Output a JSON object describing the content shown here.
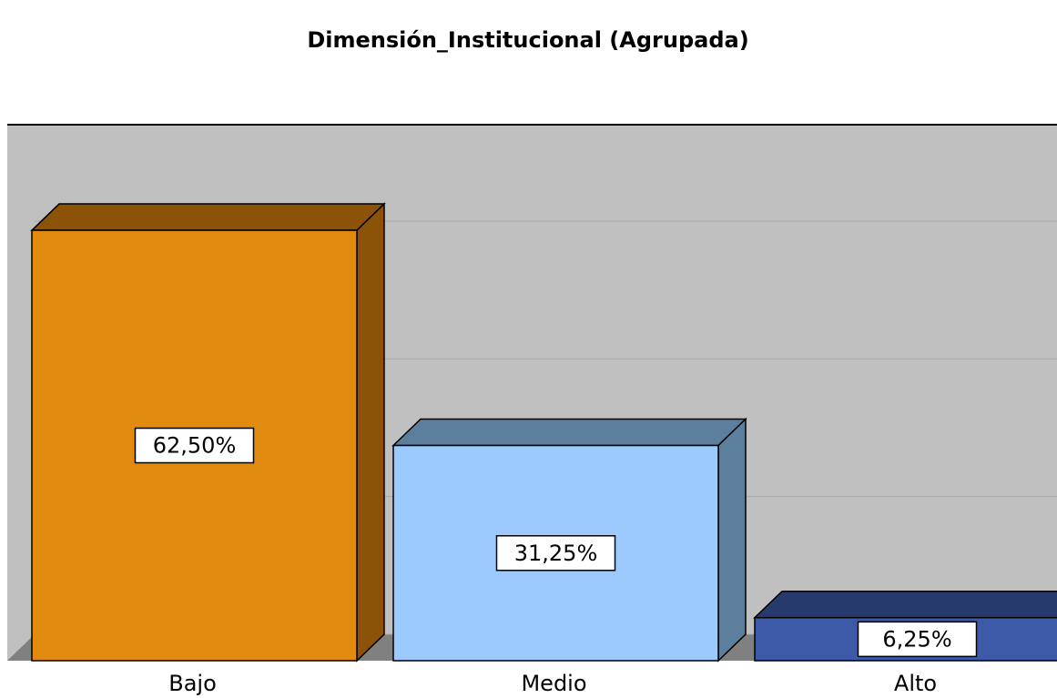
{
  "chart_data": {
    "type": "bar3d",
    "title": "Dimensión_Institucional (Agrupada)",
    "categories": [
      "Bajo",
      "Medio",
      "Alto"
    ],
    "values": [
      62.5,
      31.25,
      6.25
    ],
    "value_labels": [
      "62,50%",
      "31,25%",
      "6,25%"
    ],
    "colors": [
      "#e08a10",
      "#9ccaff",
      "#3d5aa8"
    ],
    "side_colors": [
      "#8b5208",
      "#5c7f9e",
      "#263a6e"
    ],
    "ylim": [
      0,
      74
    ],
    "yticks": [
      0,
      20,
      40,
      60
    ],
    "grid": true
  }
}
